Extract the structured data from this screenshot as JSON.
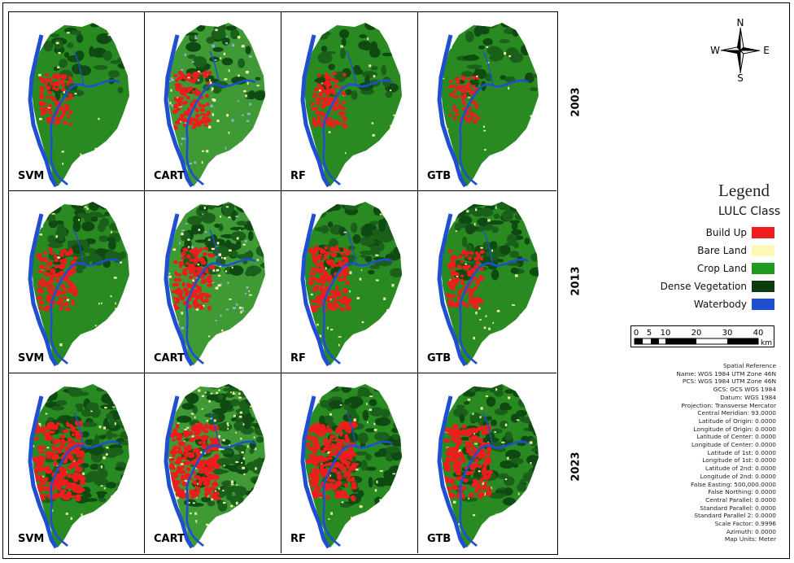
{
  "years": [
    "2003",
    "2013",
    "2023"
  ],
  "models": [
    "SVM",
    "CART",
    "RF",
    "GTB"
  ],
  "compass": {
    "n": "N",
    "s": "S",
    "e": "E",
    "w": "W"
  },
  "legend": {
    "title": "Legend",
    "subtitle": "LULC Class",
    "items": [
      {
        "label": "Build Up",
        "color": "#ee1c1c"
      },
      {
        "label": "Bare Land",
        "color": "#fff8b8"
      },
      {
        "label": "Crop Land",
        "color": "#1f9a1f"
      },
      {
        "label": "Dense Vegetation",
        "color": "#0d3b0d"
      },
      {
        "label": "Waterbody",
        "color": "#1e4fd1"
      }
    ]
  },
  "scale_bar": {
    "ticks": [
      "0",
      "5",
      "10",
      "20",
      "30",
      "40"
    ],
    "unit": "km"
  },
  "spatial_reference": [
    "Spatial Reference",
    "Name: WGS 1984 UTM Zone 46N",
    "PCS: WGS 1984 UTM Zone 46N",
    "GCS: GCS WGS 1984",
    "Datum: WGS 1984",
    "Projection: Transverse Mercator",
    "Central Meridian: 93.0000",
    "Latitude of Origin: 0.0000",
    "Longitude of Origin: 0.0000",
    "Latitude of Center: 0.0000",
    "Longitude of Center: 0.0000",
    "Latitude of 1st: 0.0000",
    "Longitude of 1st: 0.0000",
    "Latitude of 2nd: 0.0000",
    "Longitude of 2nd: 0.0000",
    "False Easting: 500,000.0000",
    "False Northing: 0.0000",
    "Central Parallel: 0.0000",
    "Standard Parallel: 0.0000",
    "Standard Parallel 2: 0.0000",
    "Scale Factor: 0.9996",
    "Azimuth: 0.0000",
    "Map Units: Meter"
  ],
  "build_up_level": [
    [
      0.35,
      0.45,
      0.4,
      0.25
    ],
    [
      0.55,
      0.55,
      0.6,
      0.45
    ],
    [
      0.85,
      0.8,
      0.85,
      0.75
    ]
  ]
}
